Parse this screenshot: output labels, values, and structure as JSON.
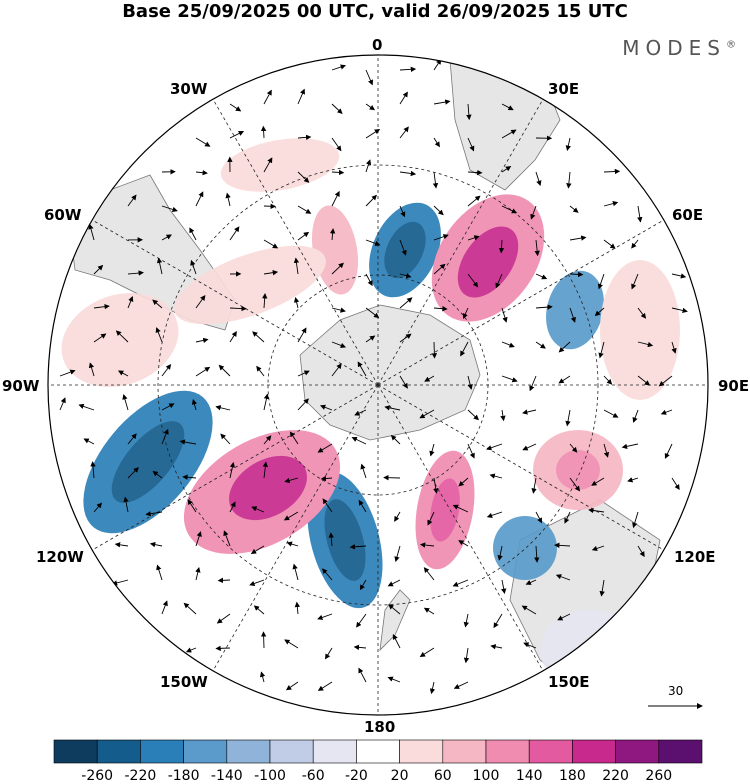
{
  "title": "Base 25/09/2025 00 UTC, valid 26/09/2025 15 UTC",
  "brand": "MODES",
  "brand_mark": "®",
  "longitude_labels": {
    "n": "0",
    "nne": "30E",
    "ene": "60E",
    "e": "90E",
    "ese": "120E",
    "sse": "150E",
    "s": "180",
    "ssw": "150W",
    "wsw": "120W",
    "w": "90W",
    "wnw": "60W",
    "nnw": "30W"
  },
  "reference_vector": "30",
  "colorbar": {
    "labels": [
      "-260",
      "-220",
      "-180",
      "-140",
      "-100",
      "-60",
      "-20",
      "20",
      "60",
      "100",
      "140",
      "180",
      "220",
      "260"
    ],
    "colors": [
      "#0d3c5e",
      "#145c8c",
      "#2b7fb8",
      "#5a9bcb",
      "#8fb3d9",
      "#c1cde6",
      "#e6e6f2",
      "#ffffff",
      "#fadcdc",
      "#f6b7c4",
      "#f08cb0",
      "#e35aa0",
      "#c72a8c",
      "#8e1780",
      "#5b0f6e"
    ]
  }
}
